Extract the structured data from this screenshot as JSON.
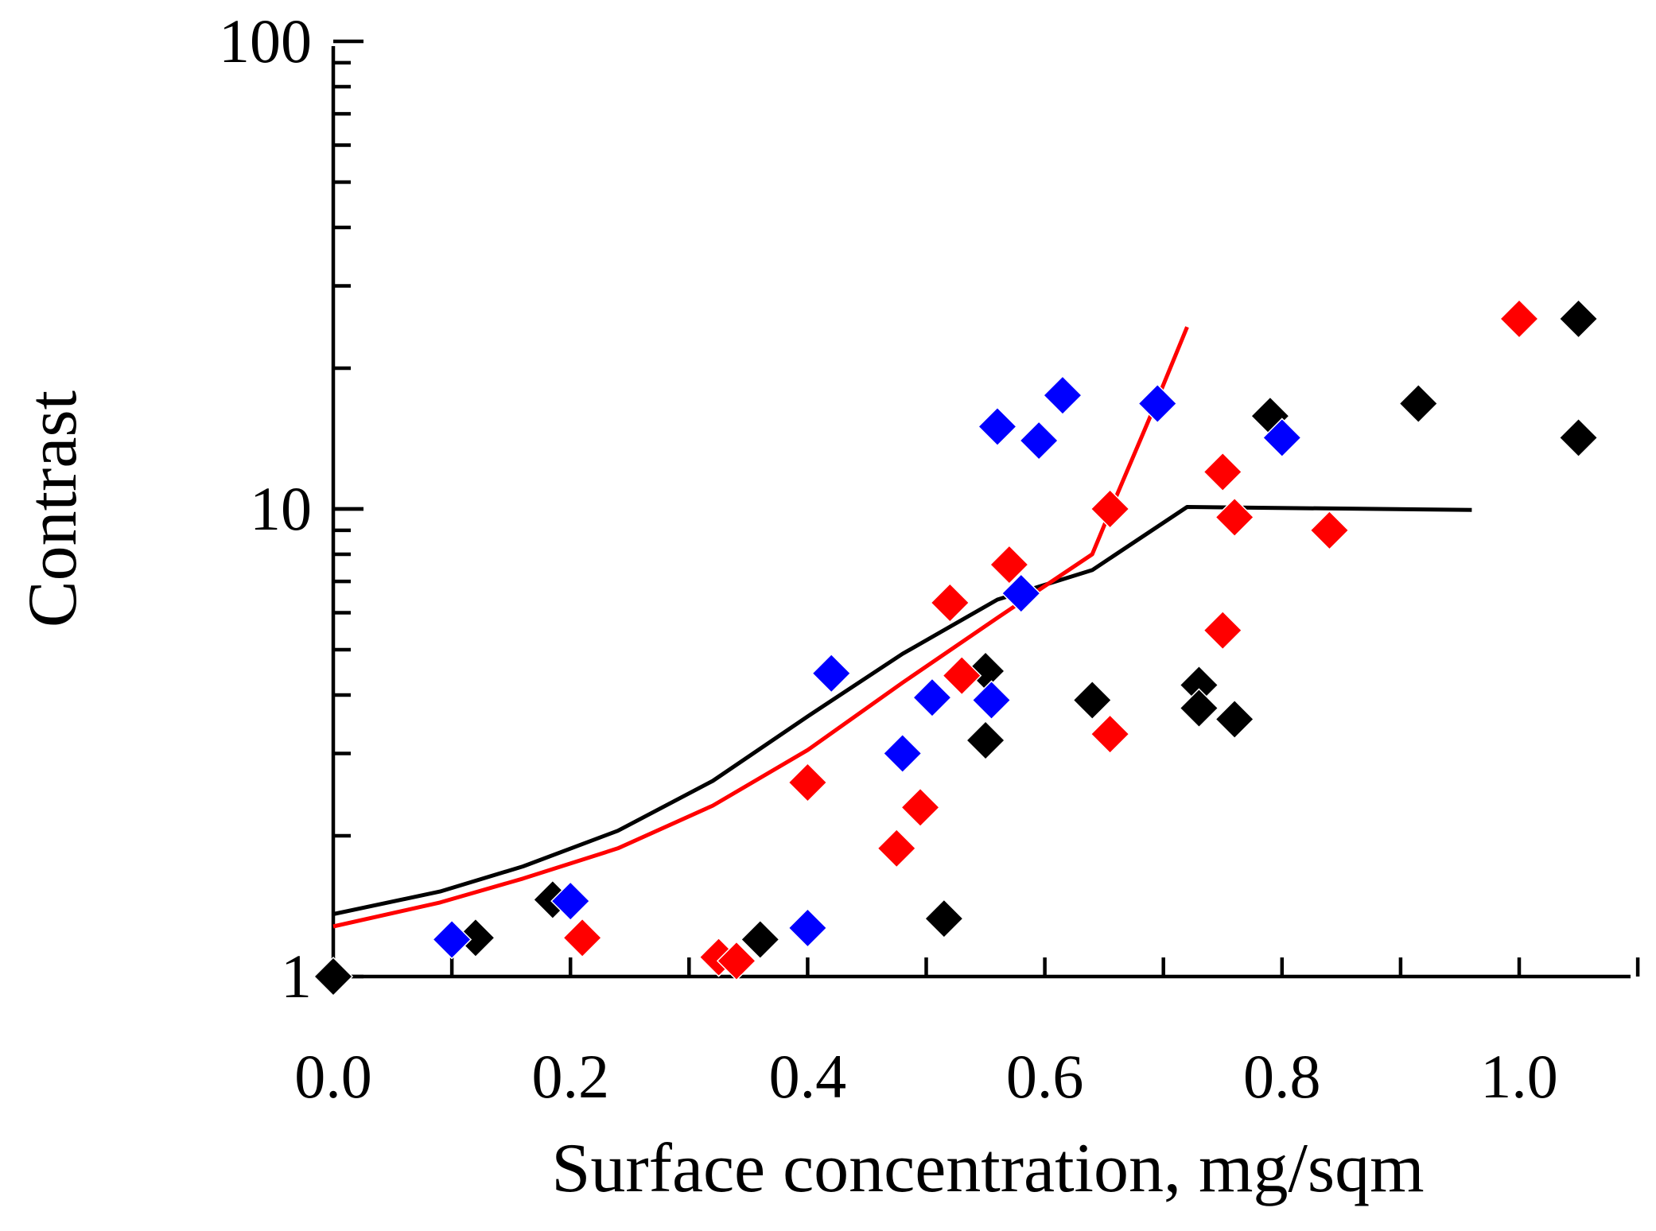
{
  "chart_data": {
    "type": "scatter",
    "title": "",
    "xlabel": "Surface concentration, mg/sqm",
    "ylabel": "Contrast",
    "xlim": [
      0.0,
      1.1
    ],
    "ylim": [
      1,
      100
    ],
    "yscale": "log",
    "grid": false,
    "x_ticks": [
      {
        "value": 0.0,
        "label": "0.0"
      },
      {
        "value": 0.2,
        "label": "0.2"
      },
      {
        "value": 0.4,
        "label": "0.4"
      },
      {
        "value": 0.6,
        "label": "0.6"
      },
      {
        "value": 0.8,
        "label": "0.8"
      },
      {
        "value": 1.0,
        "label": "1.0"
      }
    ],
    "y_ticks": [
      {
        "value": 1,
        "label": "1"
      },
      {
        "value": 10,
        "label": "10"
      },
      {
        "value": 100,
        "label": "100"
      }
    ],
    "lines": [
      {
        "name": "black-curve",
        "color": "#000000",
        "x": [
          0.0,
          0.09,
          0.16,
          0.24,
          0.32,
          0.4,
          0.48,
          0.56,
          0.64,
          0.72,
          0.96
        ],
        "y": [
          1.36,
          1.52,
          1.72,
          2.05,
          2.62,
          3.6,
          4.9,
          6.4,
          7.4,
          10.1,
          9.95
        ]
      },
      {
        "name": "red-curve",
        "color": "#ff0000",
        "x": [
          0.0,
          0.09,
          0.16,
          0.24,
          0.32,
          0.4,
          0.48,
          0.56,
          0.64,
          0.66,
          0.69,
          0.72
        ],
        "y": [
          1.28,
          1.44,
          1.62,
          1.88,
          2.32,
          3.05,
          4.25,
          5.85,
          8.0,
          10.6,
          16.0,
          24.5
        ]
      }
    ],
    "series": [
      {
        "name": "black-points",
        "color": "#000000",
        "points": [
          [
            0.0,
            1.0
          ],
          [
            0.12,
            1.21
          ],
          [
            0.185,
            1.46
          ],
          [
            0.36,
            1.2
          ],
          [
            0.515,
            1.33
          ],
          [
            0.55,
            4.5
          ],
          [
            0.55,
            3.2
          ],
          [
            0.64,
            3.9
          ],
          [
            0.73,
            4.2
          ],
          [
            0.73,
            3.75
          ],
          [
            0.76,
            3.55
          ],
          [
            0.79,
            15.8
          ],
          [
            0.915,
            16.8
          ],
          [
            1.05,
            25.5
          ],
          [
            1.05,
            14.2
          ]
        ]
      },
      {
        "name": "blue-points",
        "color": "#0000ff",
        "points": [
          [
            0.1,
            1.2
          ],
          [
            0.2,
            1.45
          ],
          [
            0.4,
            1.27
          ],
          [
            0.42,
            4.45
          ],
          [
            0.48,
            3.0
          ],
          [
            0.505,
            3.95
          ],
          [
            0.555,
            3.9
          ],
          [
            0.56,
            15.0
          ],
          [
            0.58,
            6.6
          ],
          [
            0.595,
            14.0
          ],
          [
            0.615,
            17.5
          ],
          [
            0.695,
            16.8
          ],
          [
            0.8,
            14.2
          ]
        ]
      },
      {
        "name": "red-points",
        "color": "#ff0000",
        "points": [
          [
            0.21,
            1.21
          ],
          [
            0.325,
            1.1
          ],
          [
            0.34,
            1.08
          ],
          [
            0.4,
            2.6
          ],
          [
            0.475,
            1.88
          ],
          [
            0.495,
            2.3
          ],
          [
            0.52,
            6.3
          ],
          [
            0.53,
            4.4
          ],
          [
            0.57,
            7.6
          ],
          [
            0.655,
            3.3
          ],
          [
            0.655,
            10.0
          ],
          [
            0.75,
            12.0
          ],
          [
            0.75,
            5.5
          ],
          [
            0.76,
            9.6
          ],
          [
            0.84,
            9.0
          ],
          [
            1.0,
            25.5
          ]
        ]
      }
    ]
  }
}
